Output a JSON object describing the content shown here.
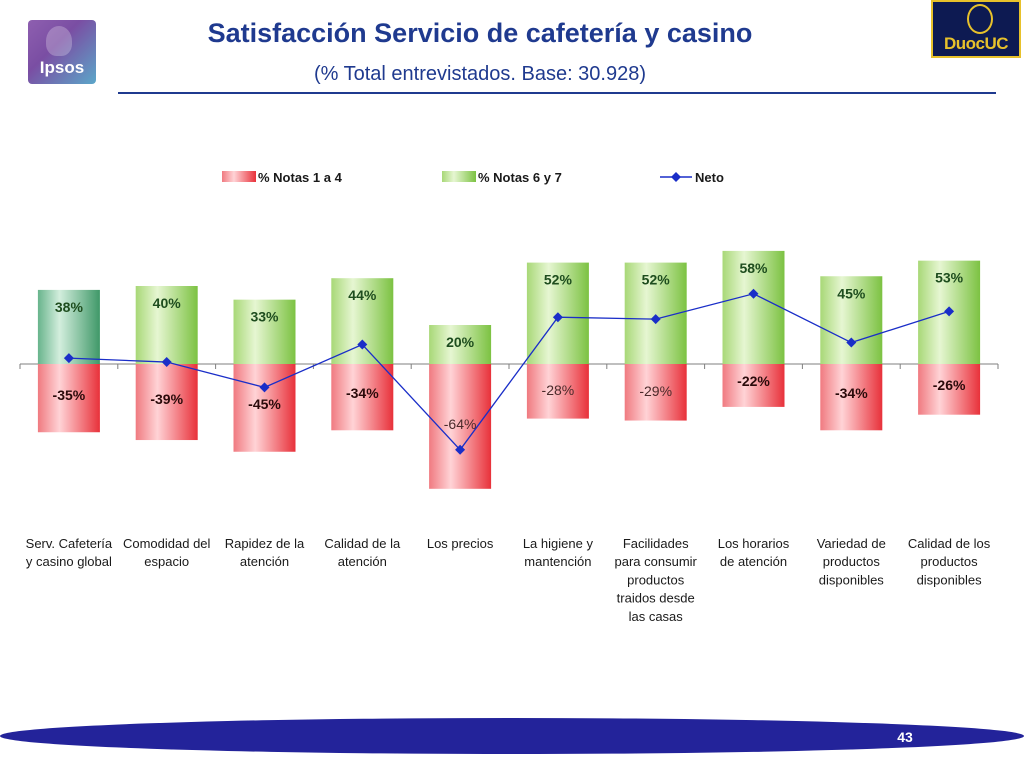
{
  "header": {
    "title": "Satisfacción Servicio de cafetería y casino",
    "subtitle": "(% Total entrevistados. Base: 30.928)",
    "logo_left": "Ipsos",
    "logo_right": "DuocUC"
  },
  "footer": {
    "page_number": "43"
  },
  "colors": {
    "title": "#1f3a8f",
    "negative_bar": "#e8313a",
    "positive_bar": "#7cc242",
    "first_positive_bar": "#3f9868",
    "net_line": "#1a2ec8",
    "footer_band": "#23239a"
  },
  "chart_data": {
    "type": "bar",
    "categories": [
      [
        "Serv. Cafetería",
        "y casino global"
      ],
      [
        "Comodidad del",
        "espacio"
      ],
      [
        "Rapidez de la",
        "atención"
      ],
      [
        "Calidad de la",
        "atención"
      ],
      [
        "Los precios"
      ],
      [
        "La higiene y",
        "mantención"
      ],
      [
        "Facilidades",
        "para consumir",
        "productos",
        "traidos desde",
        "las casas"
      ],
      [
        "Los horarios",
        "de atención"
      ],
      [
        "Variedad de",
        "productos",
        "disponibles"
      ],
      [
        "Calidad de los",
        "productos",
        "disponibles"
      ]
    ],
    "series": [
      {
        "name": "% Notas 1 a 4",
        "values": [
          -35,
          -39,
          -45,
          -34,
          -64,
          -28,
          -29,
          -22,
          -34,
          -26
        ],
        "labels": [
          "-35%",
          "-39%",
          "-45%",
          "-34%",
          "-64%",
          "-28%",
          "-29%",
          "-22%",
          "-34%",
          "-26%"
        ],
        "label_bold": [
          true,
          true,
          true,
          true,
          false,
          false,
          false,
          true,
          true,
          true
        ]
      },
      {
        "name": "% Notas 6 y 7",
        "values": [
          38,
          40,
          33,
          44,
          20,
          52,
          52,
          58,
          45,
          53
        ],
        "labels": [
          "38%",
          "40%",
          "33%",
          "44%",
          "20%",
          "52%",
          "52%",
          "58%",
          "45%",
          "53%"
        ]
      },
      {
        "name": "Neto",
        "type": "line",
        "values": [
          3,
          1,
          -12,
          10,
          -44,
          24,
          23,
          36,
          11,
          27
        ]
      }
    ],
    "legend_position": "top",
    "grid": false
  }
}
